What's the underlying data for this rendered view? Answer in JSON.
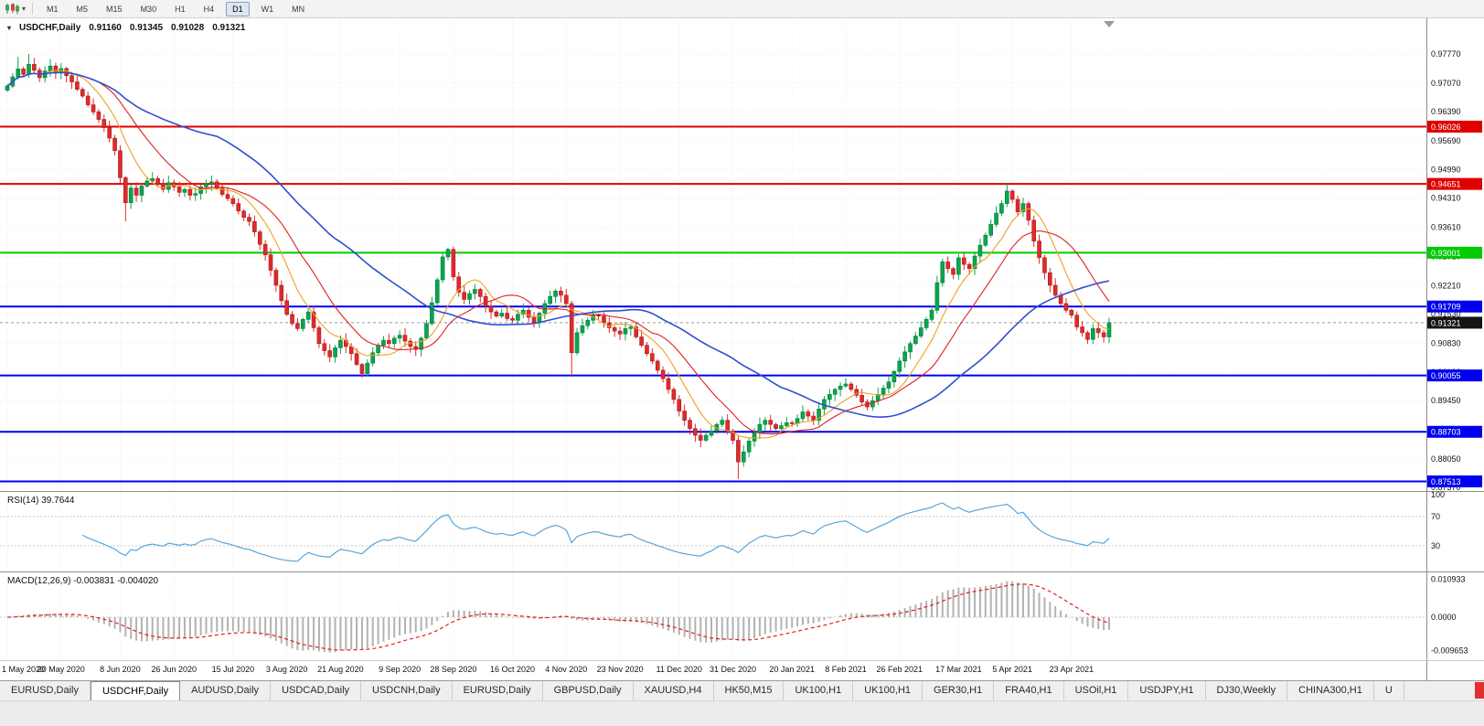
{
  "toolbar": {
    "caret": "▾",
    "timeframes": [
      {
        "label": "M1",
        "active": false
      },
      {
        "label": "M5",
        "active": false
      },
      {
        "label": "M15",
        "active": false
      },
      {
        "label": "M30",
        "active": false
      },
      {
        "label": "H1",
        "active": false
      },
      {
        "label": "H4",
        "active": false
      },
      {
        "label": "D1",
        "active": true
      },
      {
        "label": "W1",
        "active": false
      },
      {
        "label": "MN",
        "active": false
      }
    ]
  },
  "chart": {
    "context_icon": "▾"
  },
  "chart_data": {
    "type": "candlestick",
    "symbol": "USDCHF",
    "timeframe": "Daily",
    "title": {
      "symbol": "USDCHF,Daily",
      "o": "0.91160",
      "h": "0.91345",
      "l": "0.91028",
      "c": "0.91321"
    },
    "price_range": [
      0.8737,
      0.9777
    ],
    "price_axis": {
      "labels": [
        "0.97770",
        "0.97070",
        "0.96390",
        "0.95690",
        "0.94990",
        "0.94310",
        "0.93610",
        "0.92910",
        "0.92210",
        "0.91530",
        "0.90830",
        "0.90130",
        "0.89450",
        "0.88750",
        "0.88050",
        "0.87370"
      ]
    },
    "hlines": [
      {
        "price": 0.96026,
        "label": "0.96026",
        "color": "#e00000"
      },
      {
        "price": 0.94651,
        "label": "0.94651",
        "color": "#e00000"
      },
      {
        "price": 0.93001,
        "label": "0.93001",
        "color": "#00cc00"
      },
      {
        "price": 0.91709,
        "label": "0.91709",
        "color": "#0000f0"
      },
      {
        "price": 0.90055,
        "label": "0.90055",
        "color": "#0000f0"
      },
      {
        "price": 0.88703,
        "label": "0.88703",
        "color": "#0000f0"
      },
      {
        "price": 0.87513,
        "label": "0.87513",
        "color": "#0000f0"
      }
    ],
    "current_price": {
      "value": 0.91321,
      "label": "0.91321"
    },
    "candles": {
      "first_open": 0.969,
      "up_color": "#0aa64e",
      "down_color": "#e02a2a",
      "closes": [
        0.97,
        0.9722,
        0.9741,
        0.9728,
        0.9752,
        0.9738,
        0.972,
        0.9736,
        0.9748,
        0.9731,
        0.9742,
        0.9725,
        0.971,
        0.9692,
        0.9676,
        0.9655,
        0.9638,
        0.962,
        0.96,
        0.9575,
        0.9545,
        0.948,
        0.942,
        0.9455,
        0.9438,
        0.946,
        0.9472,
        0.9478,
        0.9465,
        0.9452,
        0.9468,
        0.9458,
        0.9445,
        0.9452,
        0.9438,
        0.9442,
        0.9458,
        0.9465,
        0.947,
        0.9455,
        0.944,
        0.943,
        0.9418,
        0.94,
        0.9385,
        0.9375,
        0.935,
        0.932,
        0.9295,
        0.9258,
        0.9222,
        0.9185,
        0.9152,
        0.913,
        0.9118,
        0.914,
        0.9158,
        0.912,
        0.9082,
        0.9065,
        0.905,
        0.9072,
        0.909,
        0.9075,
        0.9058,
        0.9032,
        0.901,
        0.9035,
        0.906,
        0.9078,
        0.909,
        0.9082,
        0.9095,
        0.9102,
        0.9088,
        0.9075,
        0.9068,
        0.9095,
        0.913,
        0.918,
        0.9235,
        0.929,
        0.9308,
        0.9242,
        0.9205,
        0.9188,
        0.9202,
        0.9212,
        0.9195,
        0.9172,
        0.9158,
        0.9148,
        0.9155,
        0.9142,
        0.9138,
        0.9152,
        0.9162,
        0.9145,
        0.9132,
        0.9155,
        0.9178,
        0.9195,
        0.9208,
        0.9198,
        0.9178,
        0.906,
        0.9108,
        0.9125,
        0.9138,
        0.915,
        0.9148,
        0.9132,
        0.912,
        0.9112,
        0.9105,
        0.9118,
        0.9122,
        0.9098,
        0.9078,
        0.9058,
        0.904,
        0.9018,
        0.8998,
        0.8972,
        0.8948,
        0.892,
        0.8898,
        0.8878,
        0.8862,
        0.885,
        0.8862,
        0.8872,
        0.8888,
        0.8898,
        0.8872,
        0.885,
        0.8798,
        0.8822,
        0.8848,
        0.8868,
        0.8888,
        0.8898,
        0.8888,
        0.8878,
        0.8885,
        0.8892,
        0.889,
        0.8902,
        0.8918,
        0.8908,
        0.8898,
        0.8925,
        0.8948,
        0.896,
        0.8972,
        0.898,
        0.8985,
        0.8972,
        0.8958,
        0.8942,
        0.893,
        0.8945,
        0.896,
        0.8975,
        0.899,
        0.9015,
        0.904,
        0.9062,
        0.9082,
        0.91,
        0.912,
        0.914,
        0.9162,
        0.9228,
        0.9278,
        0.9262,
        0.9248,
        0.9288,
        0.9272,
        0.9262,
        0.9292,
        0.9318,
        0.9342,
        0.9368,
        0.9395,
        0.9418,
        0.9448,
        0.9428,
        0.9398,
        0.9418,
        0.9378,
        0.9328,
        0.9288,
        0.9252,
        0.9222,
        0.9198,
        0.9178,
        0.9162,
        0.915,
        0.9122,
        0.9108,
        0.9092,
        0.9118,
        0.9108,
        0.9098,
        0.9132
      ],
      "wick_overrides": {
        "2": {
          "h": 0.977
        },
        "4": {
          "h": 0.9777
        },
        "22": {
          "l": 0.9375
        },
        "66": {
          "l": 0.9
        },
        "82": {
          "h": 0.9312
        },
        "105": {
          "l": 0.9002
        },
        "136": {
          "l": 0.8757
        },
        "186": {
          "h": 0.9465
        }
      }
    },
    "moving_averages": [
      {
        "period": 8,
        "color": "#f0a020",
        "width": 1.1
      },
      {
        "period": 16,
        "color": "#e02020",
        "width": 1.1
      },
      {
        "period": 40,
        "color": "#2f4fd0",
        "width": 1.6
      }
    ],
    "x_labels": [
      {
        "text": "1 May 2020",
        "i": 0
      },
      {
        "text": "20 May 2020",
        "i": 10
      },
      {
        "text": "8 Jun 2020",
        "i": 21
      },
      {
        "text": "26 Jun 2020",
        "i": 31
      },
      {
        "text": "15 Jul 2020",
        "i": 42
      },
      {
        "text": "3 Aug 2020",
        "i": 52
      },
      {
        "text": "21 Aug 2020",
        "i": 62
      },
      {
        "text": "9 Sep 2020",
        "i": 73
      },
      {
        "text": "28 Sep 2020",
        "i": 83
      },
      {
        "text": "16 Oct 2020",
        "i": 94
      },
      {
        "text": "4 Nov 2020",
        "i": 104
      },
      {
        "text": "23 Nov 2020",
        "i": 114
      },
      {
        "text": "11 Dec 2020",
        "i": 125
      },
      {
        "text": "31 Dec 2020",
        "i": 135
      },
      {
        "text": "20 Jan 2021",
        "i": 146
      },
      {
        "text": "8 Feb 2021",
        "i": 156
      },
      {
        "text": "26 Feb 2021",
        "i": 166
      },
      {
        "text": "17 Mar 2021",
        "i": 177
      },
      {
        "text": "5 Apr 2021",
        "i": 187
      },
      {
        "text": "23 Apr 2021",
        "i": 198
      }
    ],
    "rsi": {
      "label": "RSI(14) 39.7644",
      "period": 14,
      "value": 39.7644,
      "levels": [
        100,
        70,
        30
      ],
      "color": "#58a5dc"
    },
    "macd": {
      "label": "MACD(12,26,9) -0.003831 -0.004020",
      "fast": 12,
      "slow": 26,
      "signal_period": 9,
      "macd_value": -0.003831,
      "signal_value": -0.00402,
      "axis_labels": [
        {
          "text": "0.010933",
          "v": 0.010933
        },
        {
          "text": "0.0000",
          "v": 0
        },
        {
          "text": "-0.009653",
          "v": -0.009653
        }
      ]
    }
  },
  "tabs": {
    "items": [
      {
        "label": "EURUSD,Daily",
        "active": false
      },
      {
        "label": "USDCHF,Daily",
        "active": true
      },
      {
        "label": "AUDUSD,Daily",
        "active": false
      },
      {
        "label": "USDCAD,Daily",
        "active": false
      },
      {
        "label": "USDCNH,Daily",
        "active": false
      },
      {
        "label": "EURUSD,Daily",
        "active": false
      },
      {
        "label": "GBPUSD,Daily",
        "active": false
      },
      {
        "label": "XAUUSD,H4",
        "active": false
      },
      {
        "label": "HK50,M15",
        "active": false
      },
      {
        "label": "UK100,H1",
        "active": false
      },
      {
        "label": "UK100,H1",
        "active": false
      },
      {
        "label": "GER30,H1",
        "active": false
      },
      {
        "label": "FRA40,H1",
        "active": false
      },
      {
        "label": "USOil,H1",
        "active": false
      },
      {
        "label": "USDJPY,H1",
        "active": false
      },
      {
        "label": "DJ30,Weekly",
        "active": false
      },
      {
        "label": "CHINA300,H1",
        "active": false
      },
      {
        "label": "U",
        "active": false
      }
    ]
  }
}
